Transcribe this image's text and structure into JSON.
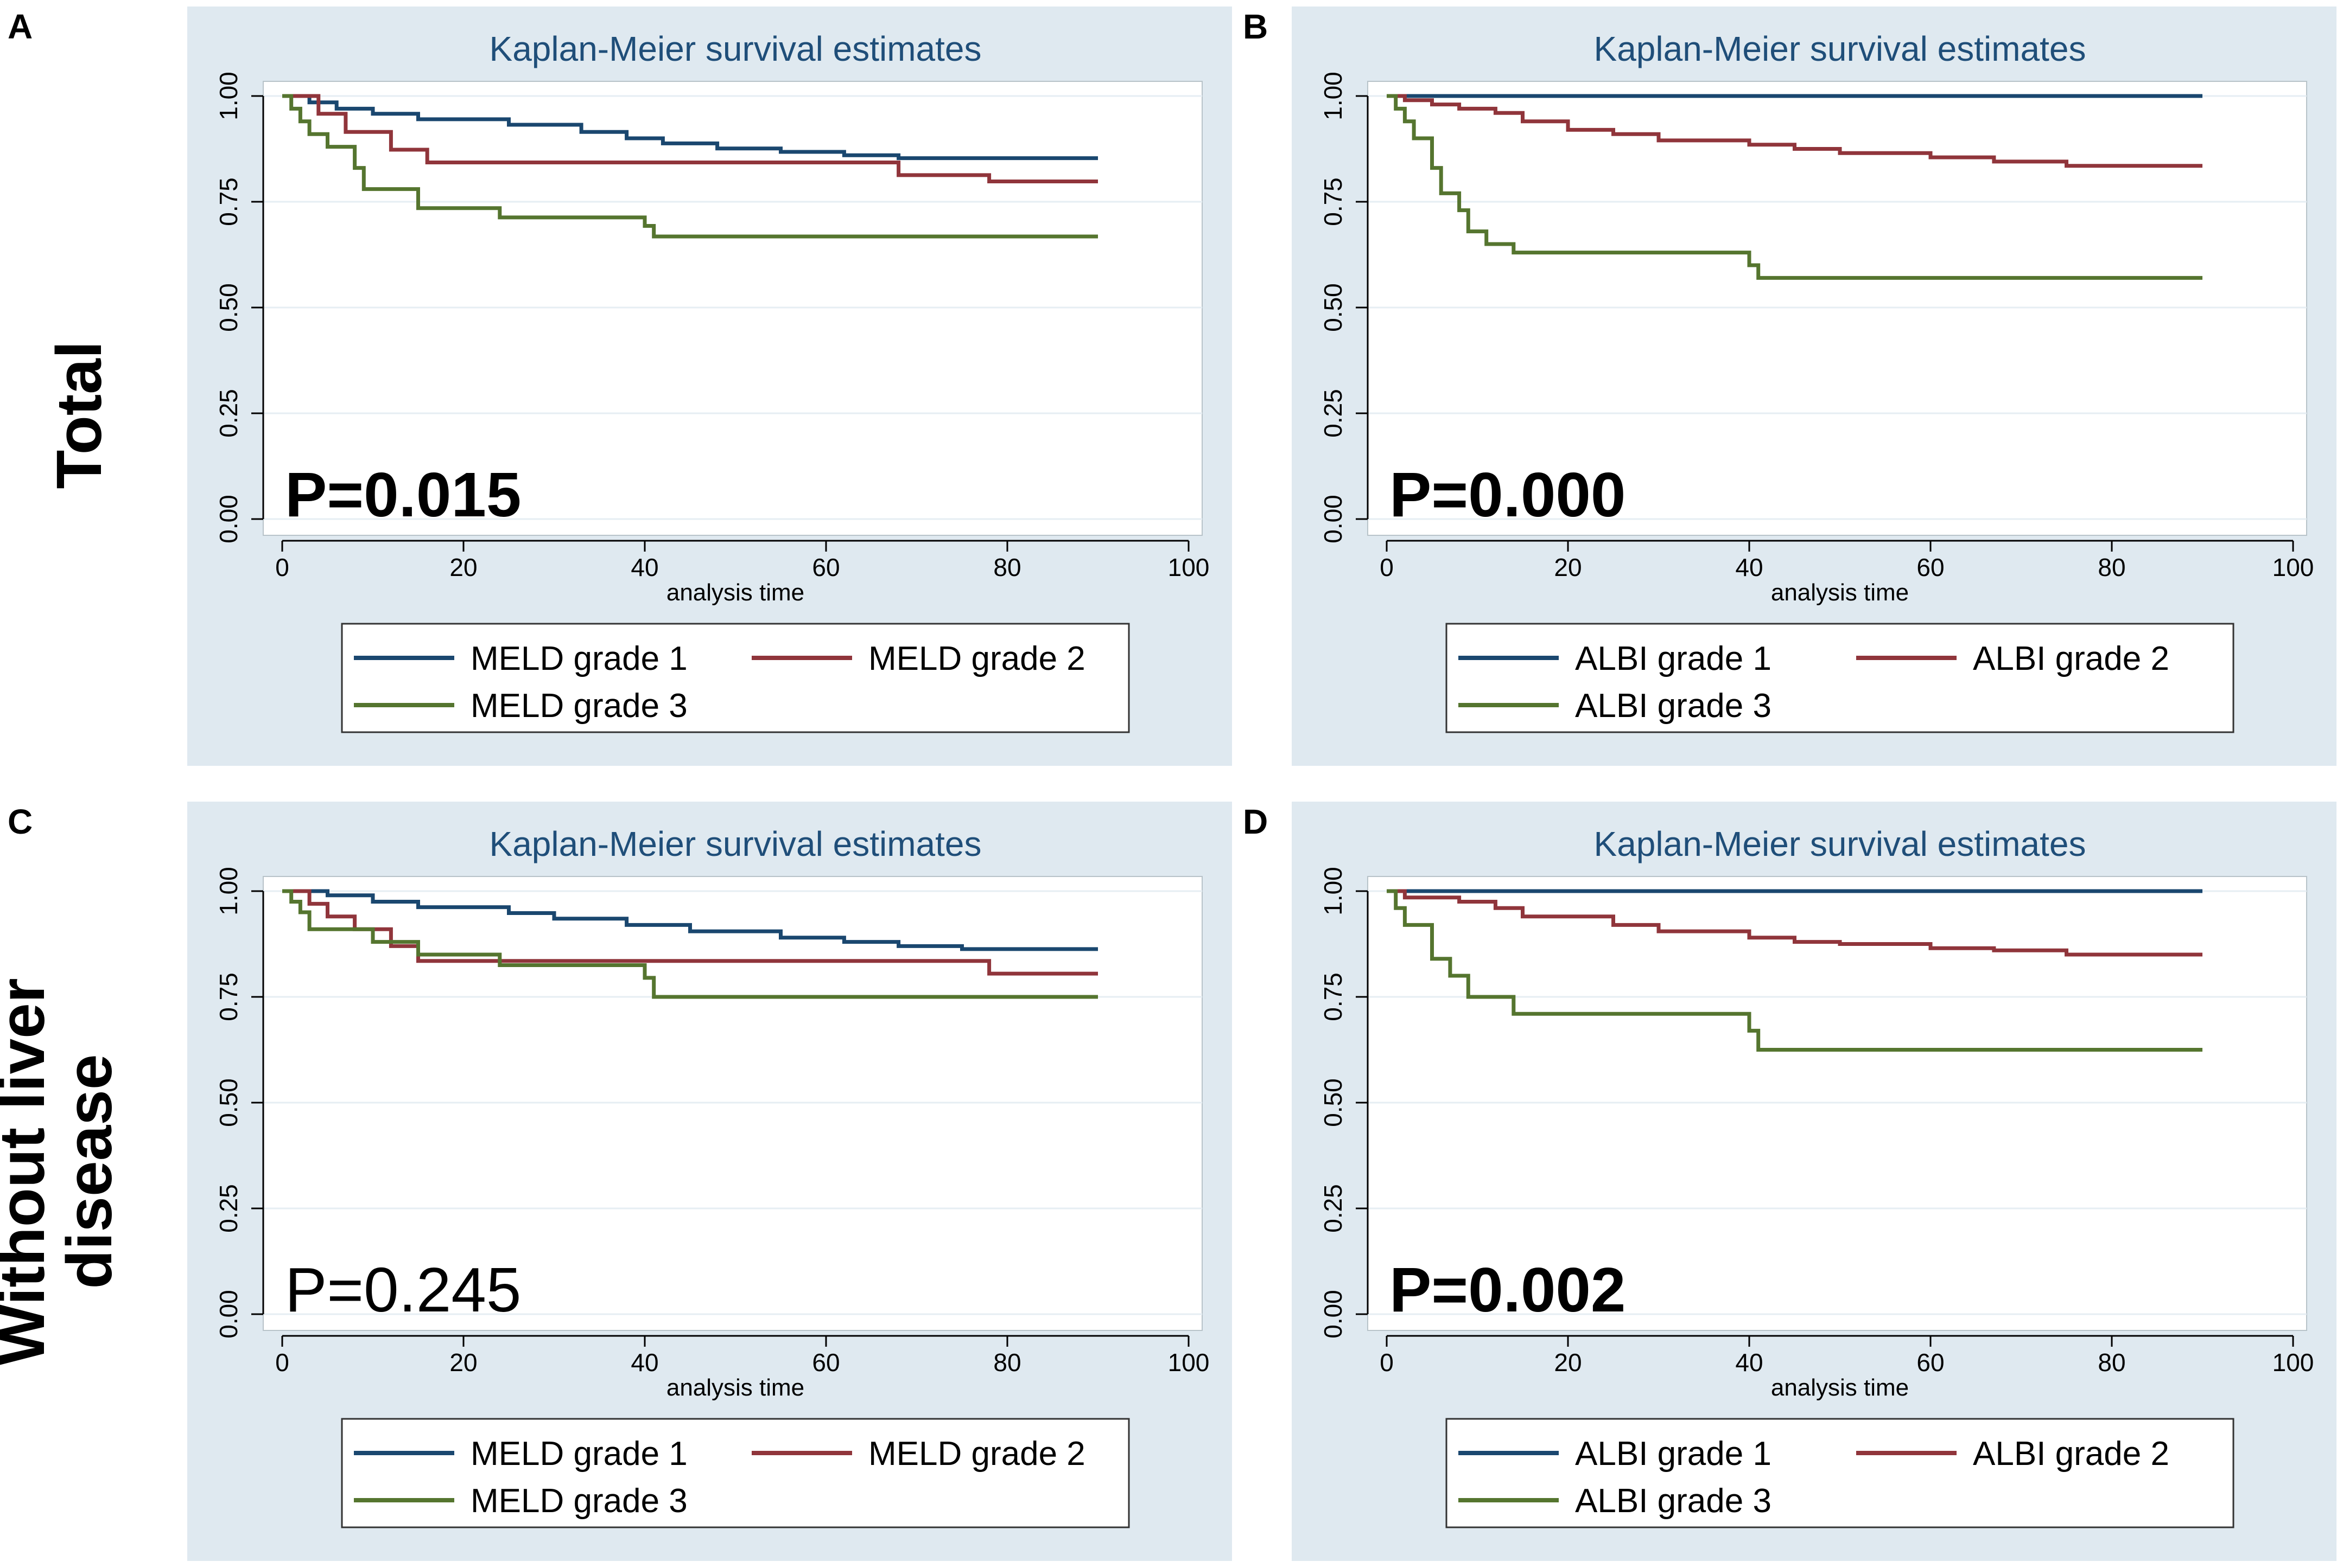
{
  "row_labels": {
    "top": "Total",
    "bottom_line1": "Without liver",
    "bottom_line2": "disease"
  },
  "colors": {
    "panel_bg": "#dfe9f0",
    "plot_bg": "#ffffff",
    "grid": "#e6eef3",
    "title": "#1f4e79",
    "grade1": "#1a476f",
    "grade2": "#90353b",
    "grade3": "#55752f"
  },
  "chart_data": [
    {
      "panel": "A",
      "type": "line",
      "title": "Kaplan-Meier survival estimates",
      "xlabel": "analysis time",
      "ylabel": "",
      "xlim": [
        0,
        100
      ],
      "ylim": [
        0,
        1
      ],
      "xticks": [
        "0",
        "20",
        "40",
        "60",
        "80",
        "100"
      ],
      "yticks": [
        "0.00",
        "0.25",
        "0.50",
        "0.75",
        "1.00"
      ],
      "p_value": "P=0.015",
      "p_bold": true,
      "legend": [
        "MELD grade 1",
        "MELD grade 2",
        "MELD grade 3"
      ],
      "series": [
        {
          "name": "MELD grade 1",
          "x": [
            0,
            3,
            6,
            10,
            15,
            25,
            33,
            38,
            42,
            48,
            55,
            62,
            68,
            90
          ],
          "y": [
            1,
            0.985,
            0.97,
            0.958,
            0.945,
            0.932,
            0.915,
            0.9,
            0.888,
            0.876,
            0.868,
            0.86,
            0.853,
            0.853
          ]
        },
        {
          "name": "MELD grade 2",
          "x": [
            0,
            4,
            7,
            12,
            16,
            68,
            78,
            90
          ],
          "y": [
            1,
            0.958,
            0.915,
            0.873,
            0.843,
            0.813,
            0.798,
            0.798
          ]
        },
        {
          "name": "MELD grade 3",
          "x": [
            0,
            1,
            2,
            3,
            5,
            8,
            9,
            15,
            24,
            40,
            41,
            90
          ],
          "y": [
            1,
            0.97,
            0.94,
            0.91,
            0.88,
            0.83,
            0.78,
            0.735,
            0.713,
            0.693,
            0.668,
            0.668
          ]
        }
      ]
    },
    {
      "panel": "B",
      "type": "line",
      "title": "Kaplan-Meier survival estimates",
      "xlabel": "analysis time",
      "ylabel": "",
      "xlim": [
        0,
        100
      ],
      "ylim": [
        0,
        1
      ],
      "xticks": [
        "0",
        "20",
        "40",
        "60",
        "80",
        "100"
      ],
      "yticks": [
        "0.00",
        "0.25",
        "0.50",
        "0.75",
        "1.00"
      ],
      "p_value": "P=0.000",
      "p_bold": true,
      "legend": [
        "ALBI grade 1",
        "ALBI grade 2",
        "ALBI grade 3"
      ],
      "series": [
        {
          "name": "ALBI grade 1",
          "x": [
            0,
            90
          ],
          "y": [
            1,
            1
          ]
        },
        {
          "name": "ALBI grade 2",
          "x": [
            0,
            2,
            5,
            8,
            12,
            15,
            20,
            25,
            30,
            40,
            45,
            50,
            60,
            67,
            75,
            90
          ],
          "y": [
            1,
            0.99,
            0.98,
            0.97,
            0.96,
            0.94,
            0.92,
            0.91,
            0.895,
            0.885,
            0.875,
            0.865,
            0.855,
            0.845,
            0.835,
            0.835
          ]
        },
        {
          "name": "ALBI grade 3",
          "x": [
            0,
            1,
            2,
            3,
            5,
            6,
            8,
            9,
            11,
            14,
            40,
            41,
            90
          ],
          "y": [
            1,
            0.97,
            0.94,
            0.9,
            0.83,
            0.77,
            0.73,
            0.68,
            0.65,
            0.63,
            0.6,
            0.57,
            0.57
          ]
        }
      ]
    },
    {
      "panel": "C",
      "type": "line",
      "title": "Kaplan-Meier survival estimates",
      "xlabel": "analysis time",
      "ylabel": "",
      "xlim": [
        0,
        100
      ],
      "ylim": [
        0,
        1
      ],
      "xticks": [
        "0",
        "20",
        "40",
        "60",
        "80",
        "100"
      ],
      "yticks": [
        "0.00",
        "0.25",
        "0.50",
        "0.75",
        "1.00"
      ],
      "p_value": "P=0.245",
      "p_bold": false,
      "legend": [
        "MELD grade 1",
        "MELD grade 2",
        "MELD grade 3"
      ],
      "series": [
        {
          "name": "MELD grade 1",
          "x": [
            0,
            5,
            10,
            15,
            25,
            30,
            38,
            45,
            55,
            62,
            68,
            75,
            90
          ],
          "y": [
            1,
            0.99,
            0.975,
            0.962,
            0.948,
            0.935,
            0.92,
            0.905,
            0.89,
            0.88,
            0.87,
            0.863,
            0.863
          ]
        },
        {
          "name": "MELD grade 2",
          "x": [
            0,
            3,
            5,
            8,
            12,
            15,
            78,
            90
          ],
          "y": [
            1,
            0.97,
            0.94,
            0.91,
            0.87,
            0.835,
            0.805,
            0.805
          ]
        },
        {
          "name": "MELD grade 3",
          "x": [
            0,
            1,
            2,
            3,
            10,
            15,
            24,
            40,
            41,
            90
          ],
          "y": [
            1,
            0.975,
            0.95,
            0.91,
            0.88,
            0.85,
            0.825,
            0.795,
            0.75,
            0.75
          ]
        }
      ]
    },
    {
      "panel": "D",
      "type": "line",
      "title": "Kaplan-Meier survival estimates",
      "xlabel": "analysis time",
      "ylabel": "",
      "xlim": [
        0,
        100
      ],
      "ylim": [
        0,
        1
      ],
      "xticks": [
        "0",
        "20",
        "40",
        "60",
        "80",
        "100"
      ],
      "yticks": [
        "0.00",
        "0.25",
        "0.50",
        "0.75",
        "1.00"
      ],
      "p_value": "P=0.002",
      "p_bold": true,
      "legend": [
        "ALBI grade 1",
        "ALBI grade 2",
        "ALBI grade 3"
      ],
      "series": [
        {
          "name": "ALBI grade 1",
          "x": [
            0,
            90
          ],
          "y": [
            1,
            1
          ]
        },
        {
          "name": "ALBI grade 2",
          "x": [
            0,
            2,
            8,
            12,
            15,
            25,
            30,
            40,
            45,
            50,
            60,
            67,
            75,
            90
          ],
          "y": [
            1,
            0.985,
            0.975,
            0.96,
            0.94,
            0.92,
            0.905,
            0.89,
            0.88,
            0.875,
            0.865,
            0.86,
            0.85,
            0.85
          ]
        },
        {
          "name": "ALBI grade 3",
          "x": [
            0,
            1,
            2,
            5,
            7,
            9,
            14,
            40,
            41,
            90
          ],
          "y": [
            1,
            0.96,
            0.92,
            0.84,
            0.8,
            0.75,
            0.71,
            0.67,
            0.625,
            0.625
          ]
        }
      ]
    }
  ]
}
